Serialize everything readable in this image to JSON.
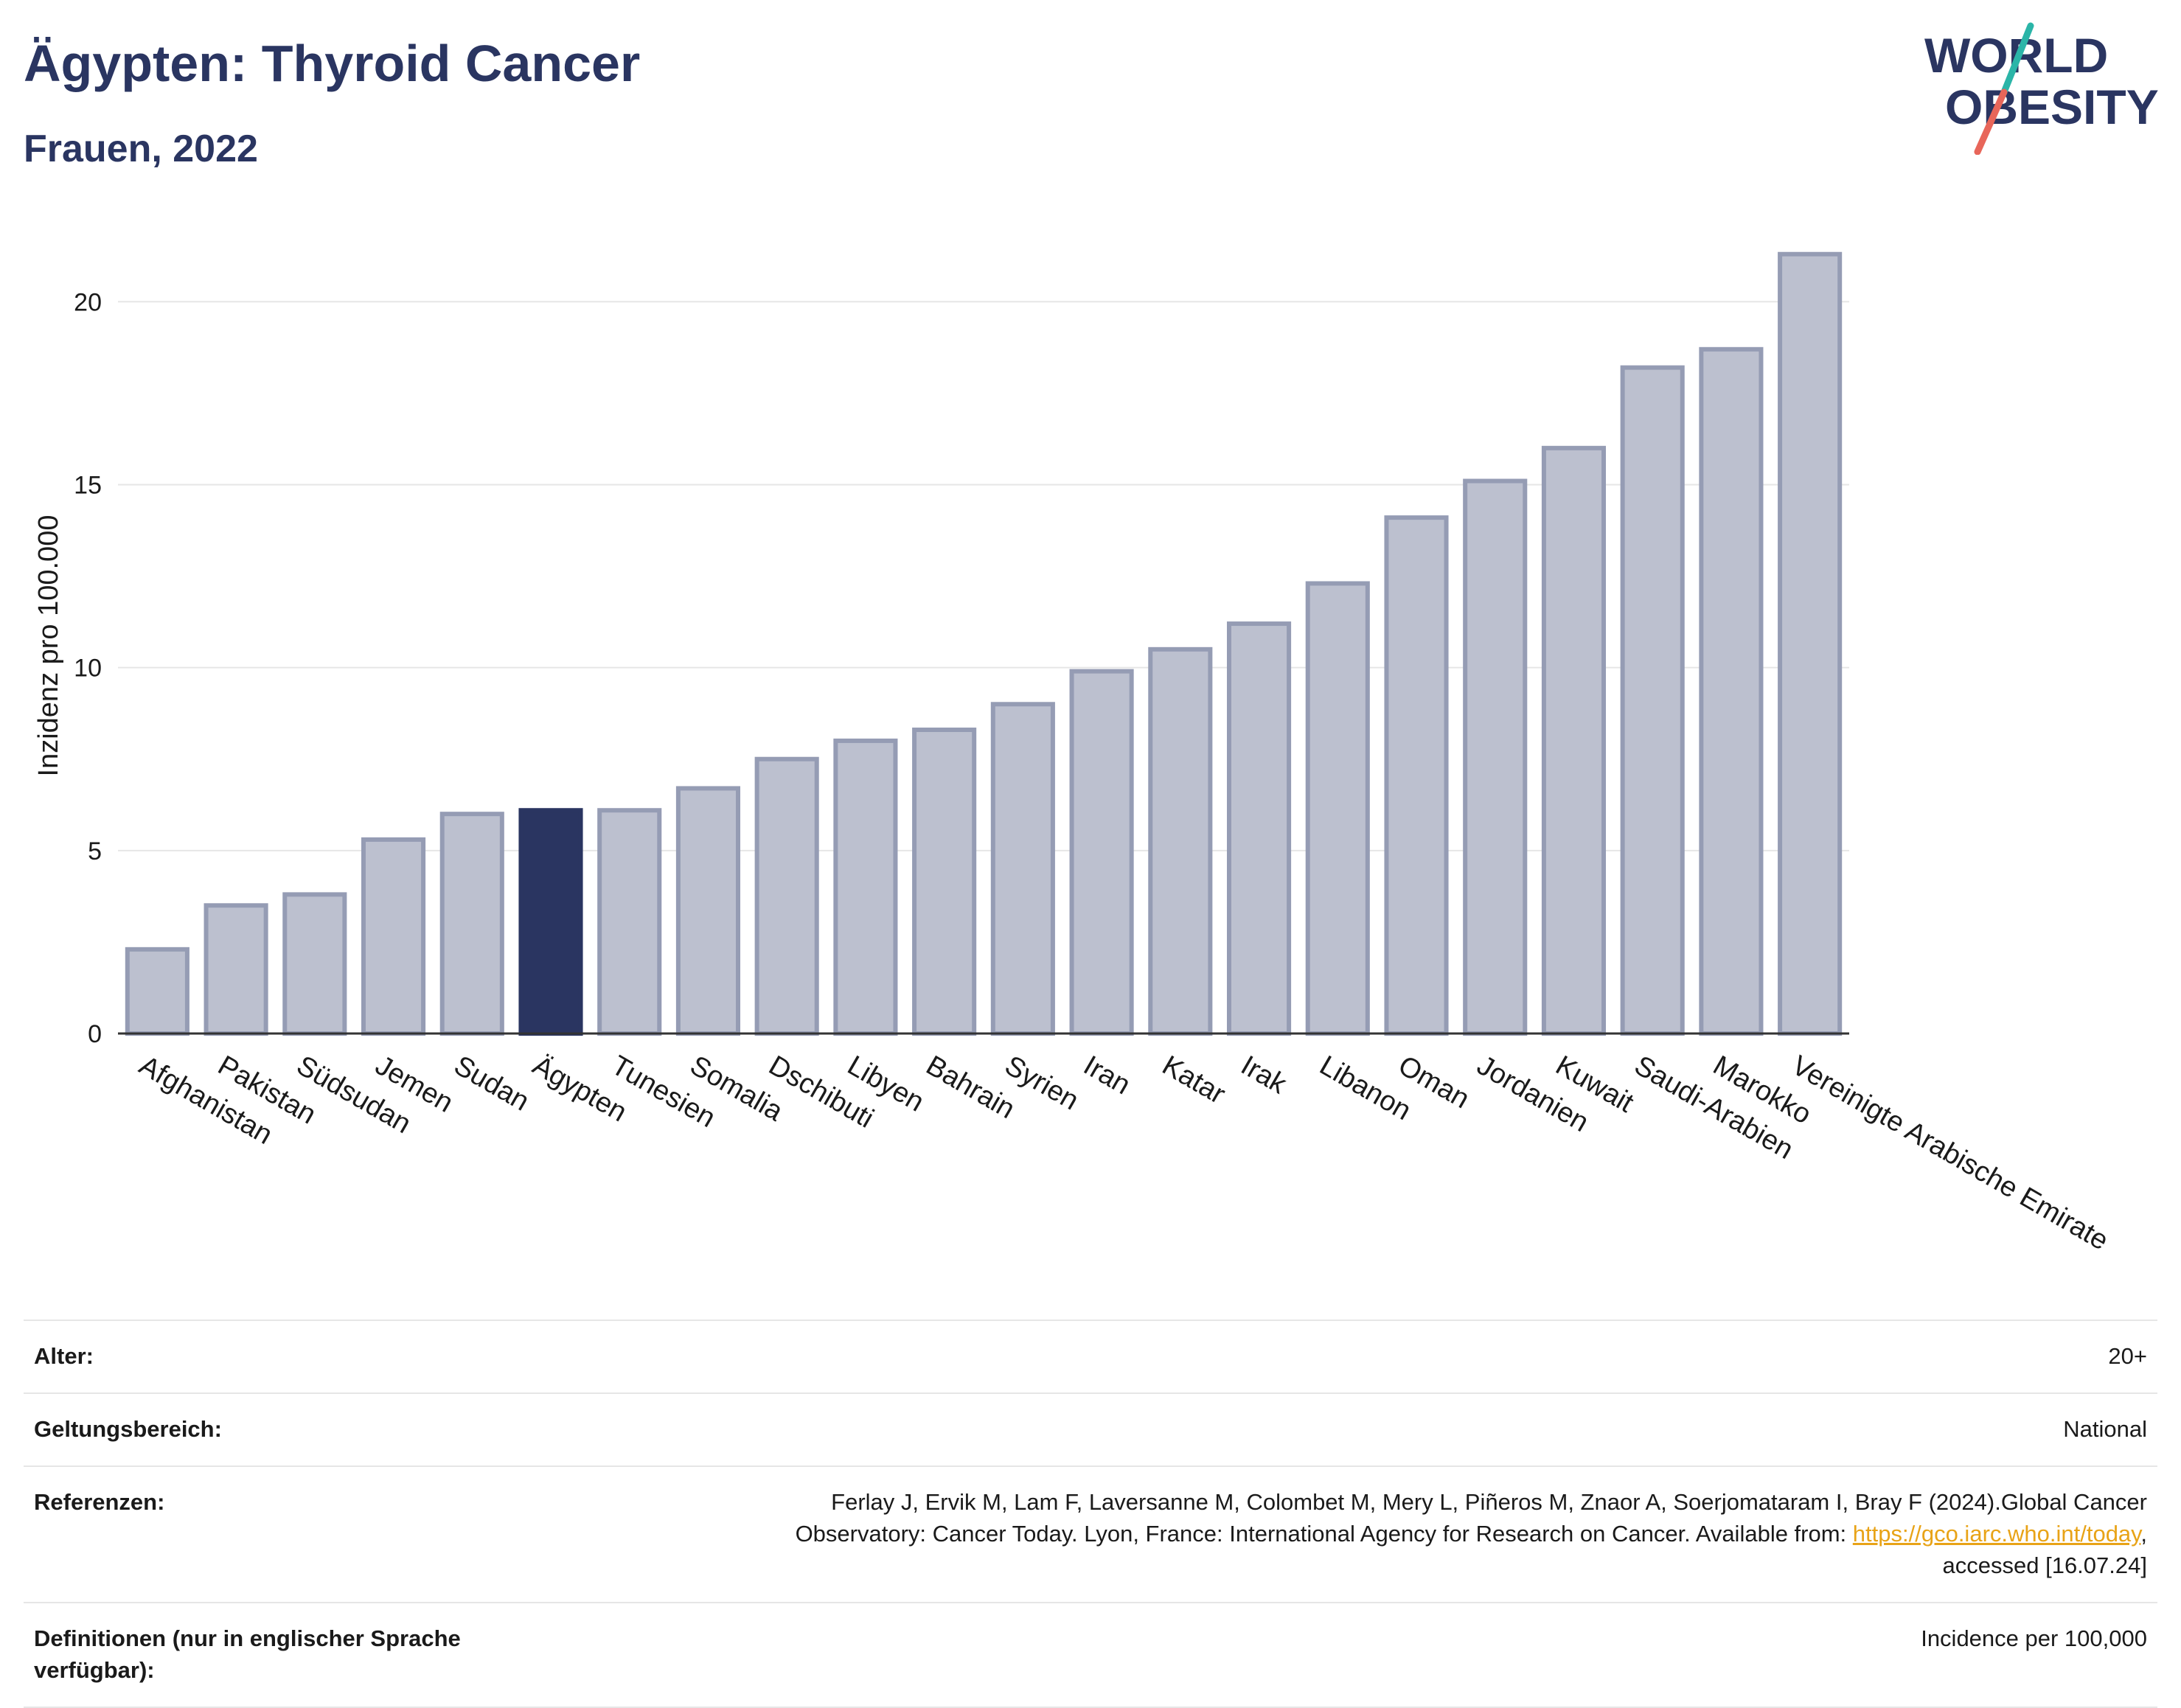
{
  "header": {
    "title": "Ägypten: Thyroid Cancer",
    "subtitle": "Frauen, 2022"
  },
  "logo": {
    "line1": "WORLD",
    "line2": "OBESITY",
    "colors": {
      "text": "#2a3561",
      "slash_top": "#2bb5a8",
      "slash_bottom": "#e8665a"
    }
  },
  "colors": {
    "bar": "#bcc0cf",
    "bar_stroke": "#959cb4",
    "highlight": "#2a3561",
    "grid": "#e6e6e6",
    "axis": "#333333",
    "link": "#e8a317"
  },
  "chart_data": {
    "type": "bar",
    "title": "",
    "xlabel": "",
    "ylabel": "Inzidenz pro 100.000",
    "ylim": [
      0,
      22
    ],
    "yticks": [
      0,
      5,
      10,
      15,
      20
    ],
    "grid": true,
    "legend": "none",
    "highlight": "Ägypten",
    "categories": [
      "Afghanistan",
      "Pakistan",
      "Südsudan",
      "Jemen",
      "Sudan",
      "Ägypten",
      "Tunesien",
      "Somalia",
      "Dschibuti",
      "Libyen",
      "Bahrain",
      "Syrien",
      "Iran",
      "Katar",
      "Irak",
      "Libanon",
      "Oman",
      "Jordanien",
      "Kuwait",
      "Saudi-Arabien",
      "Marokko",
      "Vereinigte Arabische Emirate"
    ],
    "values": [
      2.3,
      3.5,
      3.8,
      5.3,
      6.0,
      6.1,
      6.1,
      6.7,
      7.5,
      8.0,
      8.3,
      9.0,
      9.9,
      10.5,
      11.2,
      12.3,
      14.1,
      15.1,
      16.0,
      18.2,
      18.7,
      21.3
    ]
  },
  "meta": {
    "rows": [
      {
        "label": "Alter:",
        "value": "20+"
      },
      {
        "label": "Geltungsbereich:",
        "value": "National"
      },
      {
        "label": "Referenzen:",
        "value_line1": "Ferlay J, Ervik M, Lam F, Laversanne M, Colombet M, Mery L, Piñeros M, Znaor A, Soerjomataram I, Bray F (2024).Global Cancer",
        "value_line2": "Observatory: Cancer Today. Lyon, France: International Agency for Research on Cancer. Available from: ",
        "link_text": "https://gco.iarc.who.int/today",
        "value_line2_end": ",",
        "value_line3": "accessed [16.07.24]"
      },
      {
        "label": "Definitionen (nur in englischer Sprache verfügbar):",
        "value": "Incidence per 100,000"
      }
    ]
  }
}
